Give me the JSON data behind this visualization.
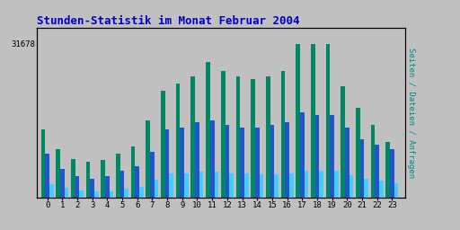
{
  "title": "Stunden-Statistik im Monat Februar 2004",
  "title_color": "#0000cc",
  "ylabel_right": "Seiten / Dateien / Anfragen",
  "ylabel_right_color": "#008888",
  "ytick_label": "31678",
  "background_color": "#c0c0c0",
  "plot_bg_color": "#c0c0c0",
  "border_color": "#000000",
  "hours": [
    0,
    1,
    2,
    3,
    4,
    5,
    6,
    7,
    8,
    9,
    10,
    11,
    12,
    13,
    14,
    15,
    16,
    17,
    18,
    19,
    20,
    21,
    22,
    23
  ],
  "seiten": [
    14000,
    10000,
    8000,
    7500,
    7800,
    9000,
    10500,
    16000,
    22000,
    23500,
    25000,
    28000,
    26000,
    25000,
    24500,
    25000,
    26000,
    31678,
    31678,
    31678,
    23000,
    18500,
    15000,
    11500
  ],
  "dateien": [
    9000,
    6000,
    4500,
    4000,
    4500,
    5500,
    6500,
    9500,
    14000,
    14500,
    15500,
    16000,
    15000,
    14500,
    14500,
    15000,
    15500,
    17500,
    17000,
    17000,
    14500,
    12000,
    11000,
    10000
  ],
  "anfragen": [
    2800,
    2000,
    1500,
    1400,
    1400,
    1900,
    2200,
    3700,
    5000,
    5000,
    5300,
    5400,
    5000,
    5000,
    4800,
    4800,
    5000,
    5600,
    5500,
    5500,
    4700,
    3900,
    3500,
    3000
  ],
  "color_seiten": "#008866",
  "color_dateien": "#2255cc",
  "color_anfragen": "#44ccff",
  "bar_width": 0.28,
  "ylim_max": 35000,
  "ytick_val": 31678
}
